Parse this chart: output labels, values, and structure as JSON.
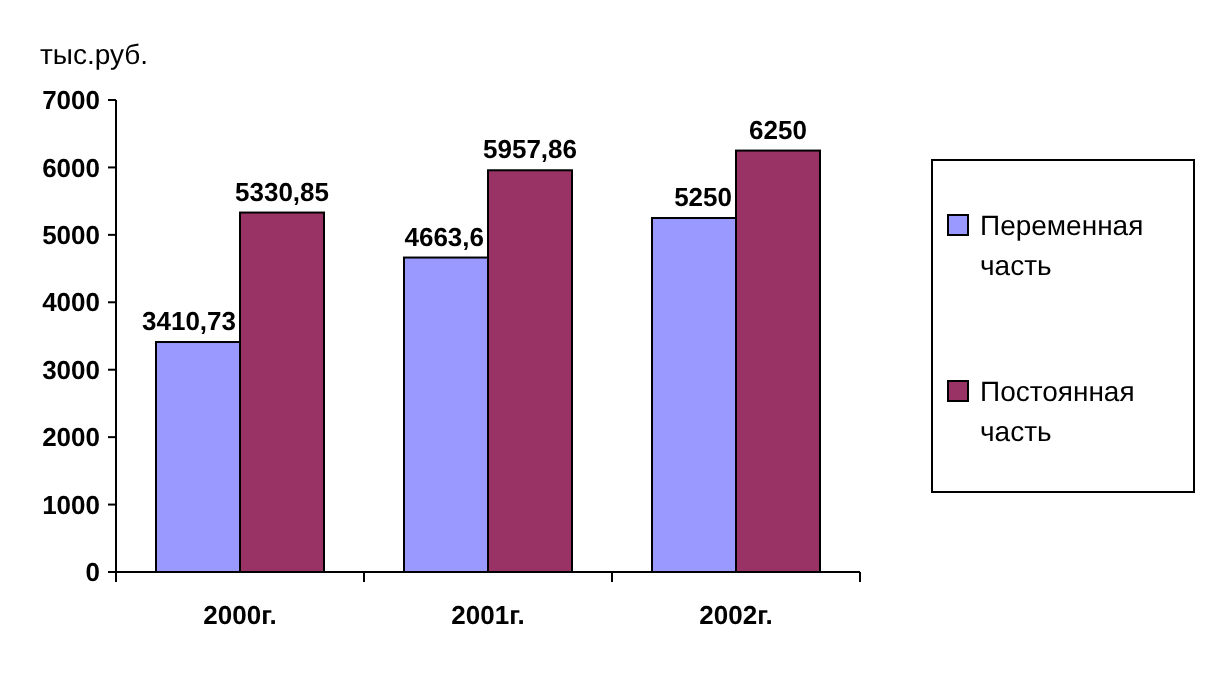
{
  "chart_data": {
    "type": "bar",
    "ylabel": "тыс.руб.",
    "categories": [
      "2000г.",
      "2001г.",
      "2002г."
    ],
    "series": [
      {
        "name": "Переменная часть",
        "color": "#9999ff",
        "values": [
          3410.73,
          4663.6,
          5250
        ],
        "value_labels": [
          "3410,73",
          "4663,6",
          "5250"
        ]
      },
      {
        "name": "Постоянная часть",
        "color": "#993366",
        "values": [
          5330.85,
          5957.86,
          6250
        ],
        "value_labels": [
          "5330,85",
          "5957,86",
          "6250"
        ]
      }
    ],
    "ylim": [
      0,
      7000
    ],
    "yticks": [
      0,
      1000,
      2000,
      3000,
      4000,
      5000,
      6000,
      7000
    ],
    "grid": false,
    "legend": "right"
  }
}
